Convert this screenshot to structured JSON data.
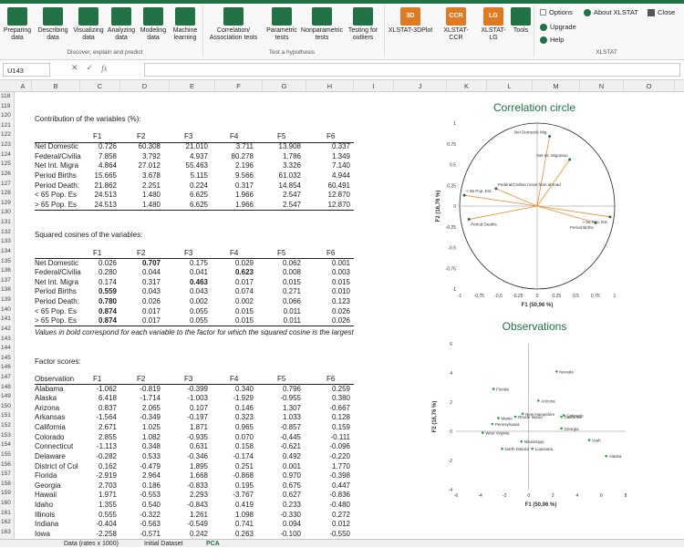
{
  "ribbon": {
    "buttons": [
      {
        "label1": "Preparing",
        "label2": "data",
        "color": "#217346"
      },
      {
        "label1": "Describing",
        "label2": "data",
        "color": "#217346"
      },
      {
        "label1": "Visualizing",
        "label2": "data",
        "color": "#217346"
      },
      {
        "label1": "Analyzing",
        "label2": "data",
        "color": "#217346"
      },
      {
        "label1": "Modeling",
        "label2": "data",
        "color": "#217346"
      },
      {
        "label1": "Machine",
        "label2": "learning",
        "color": "#217346"
      },
      {
        "label1": "Correlation/",
        "label2": "Association tests",
        "color": "#217346"
      },
      {
        "label1": "Parametric",
        "label2": "tests",
        "color": "#217346"
      },
      {
        "label1": "Nonparametric",
        "label2": "tests",
        "color": "#217346"
      },
      {
        "label1": "Testing for",
        "label2": "outliers",
        "color": "#217346"
      },
      {
        "label1": "XLSTAT-3DPlot",
        "label2": "",
        "color": "#e07a21"
      },
      {
        "label1": "XLSTAT-",
        "label2": "CCR",
        "color": "#e07a21"
      },
      {
        "label1": "XLSTAT-",
        "label2": "LG",
        "color": "#e07a21"
      },
      {
        "label1": "Tools",
        "label2": "",
        "color": "#217346"
      }
    ],
    "icon_letters": {
      "3d": "3D",
      "ccr": "CCR",
      "lg": "LG"
    },
    "groups": {
      "describe": "Discover, explain and predict",
      "test": "Test a hypothesis",
      "xlstat": "XLSTAT"
    },
    "options": "Options",
    "about": "About XLSTAT",
    "close": "Close",
    "upgrade": "Upgrade",
    "help": "Help"
  },
  "formula_bar": {
    "cell": "U143",
    "cancel": "✕",
    "confirm": "✓",
    "fx": "fx",
    "value": ""
  },
  "columns": [
    "A",
    "B",
    "C",
    "D",
    "E",
    "F",
    "G",
    "H",
    "I",
    "J",
    "K",
    "L",
    "M",
    "N",
    "O"
  ],
  "rows": [
    "118",
    "119",
    "120",
    "121",
    "122",
    "123",
    "124",
    "125",
    "126",
    "127",
    "128",
    "129",
    "130",
    "131",
    "132",
    "133",
    "134",
    "135",
    "136",
    "137",
    "138",
    "139",
    "140",
    "141",
    "142",
    "143",
    "144",
    "145",
    "146",
    "147",
    "148",
    "149",
    "150",
    "151",
    "152",
    "153",
    "154",
    "155",
    "156",
    "157",
    "158",
    "159",
    "160",
    "161",
    "162",
    "163"
  ],
  "contrib": {
    "title": "Contribution of the variables (%):",
    "headers": [
      "F1",
      "F2",
      "F3",
      "F4",
      "F5",
      "F6"
    ],
    "rows": [
      {
        "label": "Net Domestic",
        "vals": [
          "0.726",
          "60.308",
          "21.010",
          "3.711",
          "13.908",
          "0.337"
        ]
      },
      {
        "label": "Federal/Civilia",
        "vals": [
          "7.858",
          "3.792",
          "4.937",
          "80.278",
          "1.786",
          "1.349"
        ]
      },
      {
        "label": "Net Int. Migra",
        "vals": [
          "4.864",
          "27.012",
          "55.463",
          "2.196",
          "3.326",
          "7.140"
        ]
      },
      {
        "label": "Period Births",
        "vals": [
          "15.665",
          "3.678",
          "5.115",
          "9.566",
          "61.032",
          "4.944"
        ]
      },
      {
        "label": "Period Death:",
        "vals": [
          "21.862",
          "2.251",
          "0.224",
          "0.317",
          "14.854",
          "60.491"
        ]
      },
      {
        "label": "< 65 Pop. Es",
        "vals": [
          "24.513",
          "1.480",
          "6.625",
          "1.966",
          "2.547",
          "12.870"
        ]
      },
      {
        "label": "> 65 Pop. Es",
        "vals": [
          "24.513",
          "1.480",
          "6.625",
          "1.966",
          "2.547",
          "12.870"
        ]
      }
    ]
  },
  "cos": {
    "title": "Squared cosines of the variables:",
    "headers": [
      "F1",
      "F2",
      "F3",
      "F4",
      "F5",
      "F6"
    ],
    "rows": [
      {
        "label": "Net Domestic",
        "vals": [
          "0.026",
          "0.707",
          "0.175",
          "0.029",
          "0.062",
          "0.001"
        ],
        "bold": [
          1
        ]
      },
      {
        "label": "Federal/Civilia",
        "vals": [
          "0.280",
          "0.044",
          "0.041",
          "0.623",
          "0.008",
          "0.003"
        ],
        "bold": [
          3
        ]
      },
      {
        "label": "Net Int. Migra",
        "vals": [
          "0.174",
          "0.317",
          "0.463",
          "0.017",
          "0.015",
          "0.015"
        ],
        "bold": [
          2
        ]
      },
      {
        "label": "Period Births",
        "vals": [
          "0.559",
          "0.043",
          "0.043",
          "0.074",
          "0.271",
          "0.010"
        ],
        "bold": [
          0
        ]
      },
      {
        "label": "Period Death:",
        "vals": [
          "0.780",
          "0.026",
          "0.002",
          "0.002",
          "0.066",
          "0.123"
        ],
        "bold": [
          0
        ]
      },
      {
        "label": "< 65 Pop. Es",
        "vals": [
          "0.874",
          "0.017",
          "0.055",
          "0.015",
          "0.011",
          "0.026"
        ],
        "bold": [
          0
        ]
      },
      {
        "label": "> 65 Pop. Es",
        "vals": [
          "0.874",
          "0.017",
          "0.055",
          "0.015",
          "0.011",
          "0.026"
        ],
        "bold": [
          0
        ]
      }
    ],
    "note": "Values in bold correspond for each variable to the factor for which the squared cosine is the largest"
  },
  "scores": {
    "title": "Factor scores:",
    "headers": [
      "Observation",
      "F1",
      "F2",
      "F3",
      "F4",
      "F5",
      "F6"
    ],
    "rows": [
      {
        "label": "Alabama",
        "vals": [
          "-1.062",
          "-0.819",
          "-0.399",
          "0.340",
          "0.796",
          "0.259"
        ]
      },
      {
        "label": "Alaska",
        "vals": [
          "6.418",
          "-1.714",
          "-1.003",
          "-1.929",
          "-0.955",
          "0.380"
        ]
      },
      {
        "label": "Arizona",
        "vals": [
          "0.837",
          "2.065",
          "0.107",
          "0.146",
          "1.307",
          "-0.667"
        ]
      },
      {
        "label": "Arkansas",
        "vals": [
          "-1.564",
          "-0.349",
          "-0.197",
          "0.323",
          "1.033",
          "0.128"
        ]
      },
      {
        "label": "California",
        "vals": [
          "2.671",
          "1.025",
          "1.871",
          "0.965",
          "-0.857",
          "0.159"
        ]
      },
      {
        "label": "Colorado",
        "vals": [
          "2.855",
          "1.082",
          "-0.935",
          "0.070",
          "-0.445",
          "-0.111"
        ]
      },
      {
        "label": "Connecticut",
        "vals": [
          "-1.113",
          "0.348",
          "0.631",
          "0.158",
          "-0.621",
          "-0.096"
        ]
      },
      {
        "label": "Delaware",
        "vals": [
          "-0.282",
          "0.533",
          "-0.346",
          "-0.174",
          "0.492",
          "-0.220"
        ]
      },
      {
        "label": "District of Col",
        "vals": [
          "0.162",
          "-0.479",
          "1.895",
          "0.251",
          "0.001",
          "1.770"
        ]
      },
      {
        "label": "Florida",
        "vals": [
          "-2.919",
          "2.964",
          "1.668",
          "-0.868",
          "0.970",
          "-0.398"
        ]
      },
      {
        "label": "Georgia",
        "vals": [
          "2.703",
          "0.186",
          "-0.833",
          "0.195",
          "0.675",
          "0.447"
        ]
      },
      {
        "label": "Hawaii",
        "vals": [
          "1.971",
          "-0.553",
          "2.293",
          "-3.767",
          "0.627",
          "-0.836"
        ]
      },
      {
        "label": "Idaho",
        "vals": [
          "1.355",
          "0.540",
          "-0.843",
          "0.419",
          "0.233",
          "-0.480"
        ]
      },
      {
        "label": "Illinois",
        "vals": [
          "0.555",
          "-0.322",
          "1.261",
          "1.098",
          "-0.330",
          "0.272"
        ]
      },
      {
        "label": "Indiana",
        "vals": [
          "-0.404",
          "-0.563",
          "-0.549",
          "0.741",
          "0.094",
          "0.012"
        ]
      },
      {
        "label": "Iowa",
        "vals": [
          "-2.258",
          "-0.571",
          "0.242",
          "0.263",
          "-0.100",
          "-0.550"
        ]
      }
    ]
  },
  "sheet_tabs": [
    "Data (rates x 1000)",
    "Initial Dataset",
    "PCA"
  ],
  "chart_data": [
    {
      "type": "scatter",
      "title": "Correlation circle",
      "xlabel": "F1 (50,96 %)",
      "ylabel": "F2 (16,76 %)",
      "xlim": [
        -1,
        1
      ],
      "ylim": [
        -1,
        1
      ],
      "xticks": [
        "-1",
        "-0.75",
        "-0.5",
        "-0.25",
        "0",
        "0.25",
        "0.5",
        "0.75",
        "1"
      ],
      "yticks": [
        "1",
        "0.75",
        "0.5",
        "0.25",
        "0",
        "-0.25",
        "-0.5",
        "-0.75",
        "-1"
      ],
      "grid": false,
      "points": [
        {
          "name": "Net Domestic Mig.",
          "x": 0.16,
          "y": 0.84
        },
        {
          "name": "Net Int. Migration",
          "x": 0.42,
          "y": 0.56
        },
        {
          "name": "Federal/Civilian move from abroad",
          "x": -0.53,
          "y": 0.21
        },
        {
          "name": "< 65 Pop. Est.",
          "x": -0.94,
          "y": 0.13
        },
        {
          "name": "> 65 Pop. Est.",
          "x": 0.94,
          "y": -0.13
        },
        {
          "name": "Period Deaths",
          "x": -0.88,
          "y": -0.16
        },
        {
          "name": "Period Births",
          "x": 0.75,
          "y": -0.2
        }
      ]
    },
    {
      "type": "scatter",
      "title": "Observations",
      "xlabel": "F1 (50,96 %)",
      "ylabel": "F2 (16,76 %)",
      "xlim": [
        -6,
        8
      ],
      "ylim": [
        -4,
        6
      ],
      "xticks": [
        "-6",
        "-4",
        "-2",
        "0",
        "2",
        "4",
        "6",
        "8"
      ],
      "yticks": [
        "6",
        "4",
        "2",
        "0",
        "-2",
        "-4"
      ],
      "grid": false,
      "points": [
        {
          "name": "Nevada",
          "x": 2.3,
          "y": 4.1
        },
        {
          "name": "Florida",
          "x": -2.9,
          "y": 2.9
        },
        {
          "name": "Arizona",
          "x": 0.8,
          "y": 2.1
        },
        {
          "name": "California",
          "x": 2.7,
          "y": 1.0
        },
        {
          "name": "Colorado",
          "x": 2.9,
          "y": 1.1
        },
        {
          "name": "Georgia",
          "x": 2.7,
          "y": 0.2
        },
        {
          "name": "Utah",
          "x": 5.0,
          "y": -0.6
        },
        {
          "name": "Alaska",
          "x": 6.4,
          "y": -1.7
        },
        {
          "name": "Mississippi",
          "x": -0.6,
          "y": -0.7
        },
        {
          "name": "North Dakota",
          "x": -2.2,
          "y": -1.2
        },
        {
          "name": "Louisiana",
          "x": 0.3,
          "y": -1.2
        },
        {
          "name": "West Virginia",
          "x": -3.8,
          "y": -0.1
        },
        {
          "name": "Pennsylvania",
          "x": -3.0,
          "y": 0.5
        },
        {
          "name": "New Hampshire",
          "x": -0.5,
          "y": 1.2
        },
        {
          "name": "Rhode Island",
          "x": -1.1,
          "y": 1.0
        },
        {
          "name": "Maine",
          "x": -2.5,
          "y": 0.9
        }
      ]
    }
  ]
}
